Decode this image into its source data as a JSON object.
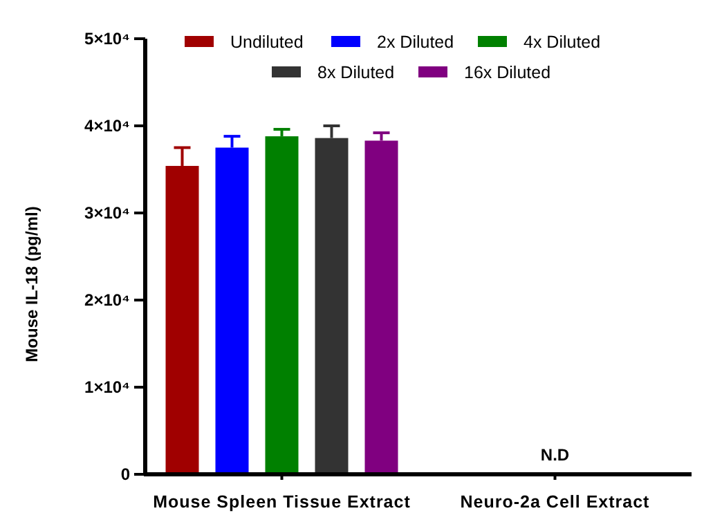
{
  "chart_data": {
    "type": "bar",
    "ylabel": "Mouse IL-18 (pg/ml)",
    "categories": [
      "Mouse Spleen Tissue Extract",
      "Neuro-2a Cell Extract"
    ],
    "series": [
      {
        "name": "Undiluted",
        "color": "#a00000",
        "values": [
          35400,
          null
        ],
        "errors": [
          [
            35400,
            37500
          ],
          null
        ]
      },
      {
        "name": "2x Diluted",
        "color": "#0000ff",
        "values": [
          37500,
          null
        ],
        "errors": [
          [
            37500,
            38800
          ],
          null
        ]
      },
      {
        "name": "4x Diluted",
        "color": "#008000",
        "values": [
          38800,
          null
        ],
        "errors": [
          [
            38800,
            39600
          ],
          null
        ]
      },
      {
        "name": "8x Diluted",
        "color": "#333333",
        "values": [
          38600,
          null
        ],
        "errors": [
          [
            38600,
            40000
          ],
          null
        ]
      },
      {
        "name": "16x Diluted",
        "color": "#800080",
        "values": [
          38300,
          null
        ],
        "errors": [
          [
            38300,
            39200
          ],
          null
        ]
      }
    ],
    "ylim": [
      0,
      50000
    ],
    "yticks": [
      0,
      {
        "value": 10000,
        "label": "1×10⁴"
      },
      {
        "value": 20000,
        "label": "2×10⁴"
      },
      {
        "value": 30000,
        "label": "3×10⁴"
      },
      {
        "value": 40000,
        "label": "4×10⁴"
      },
      {
        "value": 50000,
        "label": "5×10⁴"
      }
    ],
    "legend": "top",
    "grid": false,
    "annotations": [
      "N.D"
    ]
  }
}
